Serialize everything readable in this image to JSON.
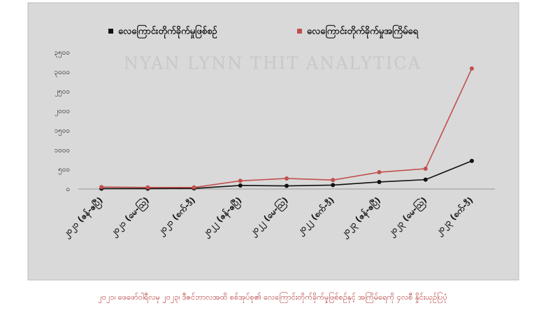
{
  "chart_data": {
    "type": "line",
    "watermark": "NYAN LYNN THIT ANALYTICA",
    "caption": "၂၀၂၁၊ ဖေဖော်ဝါရီလမှ ၂၀၂၃၊ ဒီဇင်ဘာလအထိ စစ်အုပ်စု၏ လေကြောင်းတိုက်ခိုက်မှုဖြစ်စဉ်နှင့် အကြိမ်ရေကို ၄လစီ နှိုင်းယှဉ်ပြပုံ",
    "categories": [
      "၂၀၂၁ (ဇန်-ဧပြီ)",
      "၂၀၂၁ (မေ-ဩ)",
      "၂၀၂၁ (စက်-ဒီ)",
      "၂၀၂၂ (ဇန်-ဧပြီ)",
      "၂၀၂၂ (မေ-ဩ)",
      "၂၀၂၂ (စက်-ဒီ)",
      "၂၀၂၃ (ဇန်-ဧပြီ)",
      "၂၀၂၃ (မေ-ဩ)",
      "၂၀၂၃ (စက်-ဒီ)"
    ],
    "series": [
      {
        "name": "လေကြောင်းတိုက်ခိုက်မှုဖြစ်စဉ်",
        "color": "#111111",
        "values": [
          10,
          10,
          15,
          90,
          80,
          100,
          180,
          240,
          720
        ]
      },
      {
        "name": "လေကြောင်းတိုက်ခိုက်မှုအကြိမ်ရေ",
        "color": "#c0504d",
        "values": [
          50,
          40,
          40,
          210,
          270,
          230,
          430,
          520,
          3090
        ]
      }
    ],
    "ylim": [
      0,
      3500
    ],
    "yticks": [
      {
        "value": 0,
        "label": "၀"
      },
      {
        "value": 500,
        "label": "၅၀၀"
      },
      {
        "value": 1000,
        "label": "၁၀၀၀"
      },
      {
        "value": 1500,
        "label": "၁၅၀၀"
      },
      {
        "value": 2000,
        "label": "၂၀၀၀"
      },
      {
        "value": 2500,
        "label": "၂၅၀၀"
      },
      {
        "value": 3000,
        "label": "၃၀၀၀"
      },
      {
        "value": 3500,
        "label": "၃၅၀၀"
      }
    ],
    "grid": false,
    "legend": "top"
  }
}
